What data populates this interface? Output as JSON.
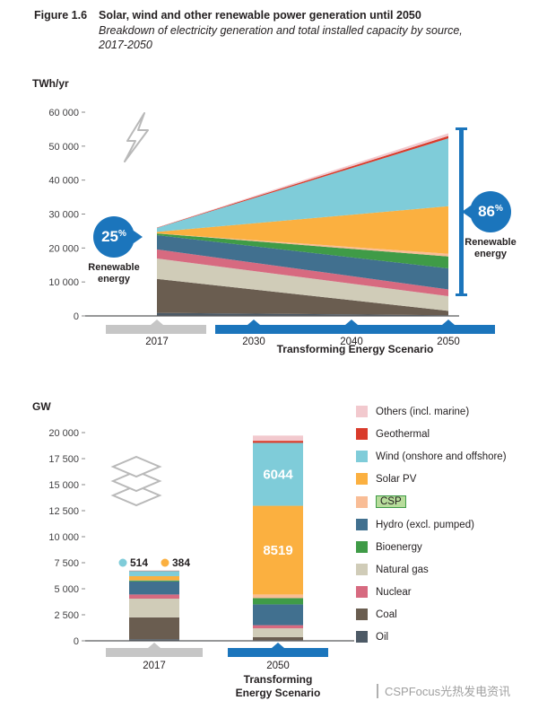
{
  "figure": {
    "label": "Figure 1.6",
    "title": "Solar, wind and other renewable power generation until 2050",
    "subtitle": "Breakdown of electricity generation and total installed capacity by source,",
    "subtitle2": "2017-2050"
  },
  "top_chart": {
    "unit_label": "TWh/yr",
    "scenario_label": "Transforming Energy Scenario",
    "x_tick_labels": [
      "2017",
      "2030",
      "2040",
      "2050"
    ],
    "badge_2017": {
      "value": "25",
      "percent_sign": "%",
      "label_line1": "Renewable",
      "label_line2": "energy"
    },
    "badge_2050": {
      "value": "86",
      "percent_sign": "%",
      "label_line1": "Renewable",
      "label_line2": "energy"
    },
    "accent_blue": "#1b75bc",
    "marker_gray": "#c6c6c6"
  },
  "bottom_chart": {
    "unit_label": "GW",
    "x_label_2017": "2017",
    "x_label_2050": "2050",
    "scenario_line1": "Transforming",
    "scenario_line2": "Energy Scenario"
  },
  "legend": {
    "items": [
      {
        "label": "Others (incl. marine)",
        "color": "#f2c9ce"
      },
      {
        "label": "Geothermal",
        "color": "#d93b2b"
      },
      {
        "label": "Wind (onshore and offshore)",
        "color": "#7fccd9"
      },
      {
        "label": "Solar PV",
        "color": "#fbb040"
      },
      {
        "label": "CSP",
        "color": "#f9bd96",
        "highlight": true,
        "highlight_color": "#b7dc9b"
      },
      {
        "label": "Hydro (excl. pumped)",
        "color": "#41708f"
      },
      {
        "label": "Bioenergy",
        "color": "#3f9b47"
      },
      {
        "label": "Natural gas",
        "color": "#d0ccb8"
      },
      {
        "label": "Nuclear",
        "color": "#d76a80"
      },
      {
        "label": "Coal",
        "color": "#6a5d50"
      },
      {
        "label": "Oil",
        "color": "#4d5a66"
      }
    ]
  },
  "watermark": {
    "text": "CSPFocus光热发电资讯"
  },
  "chart_data": [
    {
      "type": "area",
      "ylabel": "TWh/yr",
      "x": [
        2017,
        2050
      ],
      "x_ticks": [
        2017,
        2030,
        2040,
        2050
      ],
      "ylim": [
        0,
        60000
      ],
      "y_tick_step": 10000,
      "grid": false,
      "legend_position": "none",
      "stack_order": "bottom-to-top",
      "series": [
        {
          "name": "Oil",
          "color": "#4d5a66",
          "values": [
            900,
            200
          ]
        },
        {
          "name": "Coal",
          "color": "#6a5d50",
          "values": [
            10000,
            1300
          ]
        },
        {
          "name": "Natural gas",
          "color": "#d0ccb8",
          "values": [
            6000,
            4300
          ]
        },
        {
          "name": "Nuclear",
          "color": "#d76a80",
          "values": [
            2700,
            2000
          ]
        },
        {
          "name": "Hydro (excl. pumped)",
          "color": "#41708f",
          "values": [
            4200,
            6200
          ]
        },
        {
          "name": "Bioenergy",
          "color": "#3f9b47",
          "values": [
            500,
            3500
          ]
        },
        {
          "name": "CSP",
          "color": "#f9bd96",
          "values": [
            10,
            800
          ]
        },
        {
          "name": "Solar PV",
          "color": "#fbb040",
          "values": [
            450,
            14000
          ]
        },
        {
          "name": "Wind (onshore and offshore)",
          "color": "#7fccd9",
          "values": [
            1150,
            20000
          ]
        },
        {
          "name": "Geothermal",
          "color": "#d93b2b",
          "values": [
            90,
            700
          ]
        },
        {
          "name": "Others (incl. marine)",
          "color": "#f2c9ce",
          "values": [
            60,
            800
          ]
        }
      ],
      "annotations": [
        {
          "x": 2017,
          "text": "25%",
          "label": "Renewable energy"
        },
        {
          "x": 2050,
          "text": "86%",
          "label": "Renewable energy"
        }
      ]
    },
    {
      "type": "bar",
      "ylabel": "GW",
      "categories": [
        "2017",
        "2050 Transforming Energy Scenario"
      ],
      "ylim": [
        0,
        20000
      ],
      "y_tick_step": 2500,
      "grid": false,
      "stack_order": "bottom-to-top",
      "series": [
        {
          "name": "Oil",
          "color": "#4d5a66",
          "values": [
            150,
            50
          ]
        },
        {
          "name": "Coal",
          "color": "#6a5d50",
          "values": [
            2100,
            300
          ]
        },
        {
          "name": "Natural gas",
          "color": "#d0ccb8",
          "values": [
            1800,
            850
          ]
        },
        {
          "name": "Nuclear",
          "color": "#d76a80",
          "values": [
            400,
            300
          ]
        },
        {
          "name": "Hydro (excl. pumped)",
          "color": "#41708f",
          "values": [
            1250,
            2000
          ]
        },
        {
          "name": "Bioenergy",
          "color": "#3f9b47",
          "values": [
            120,
            600
          ]
        },
        {
          "name": "CSP",
          "color": "#f9bd96",
          "values": [
            5,
            350
          ]
        },
        {
          "name": "Solar PV",
          "color": "#fbb040",
          "values": [
            384,
            8519
          ]
        },
        {
          "name": "Wind (onshore and offshore)",
          "color": "#7fccd9",
          "values": [
            514,
            6044
          ]
        },
        {
          "name": "Geothermal",
          "color": "#d93b2b",
          "values": [
            15,
            200
          ]
        },
        {
          "name": "Others (incl. marine)",
          "color": "#f2c9ce",
          "values": [
            12,
            500
          ]
        }
      ],
      "data_labels": [
        {
          "category_index": 1,
          "series": "Wind (onshore and offshore)",
          "text": "6044"
        },
        {
          "category_index": 1,
          "series": "Solar PV",
          "text": "8519"
        }
      ],
      "callouts": [
        {
          "category_index": 0,
          "series": "Wind (onshore and offshore)",
          "text": "514"
        },
        {
          "category_index": 0,
          "series": "Solar PV",
          "text": "384"
        }
      ]
    }
  ]
}
